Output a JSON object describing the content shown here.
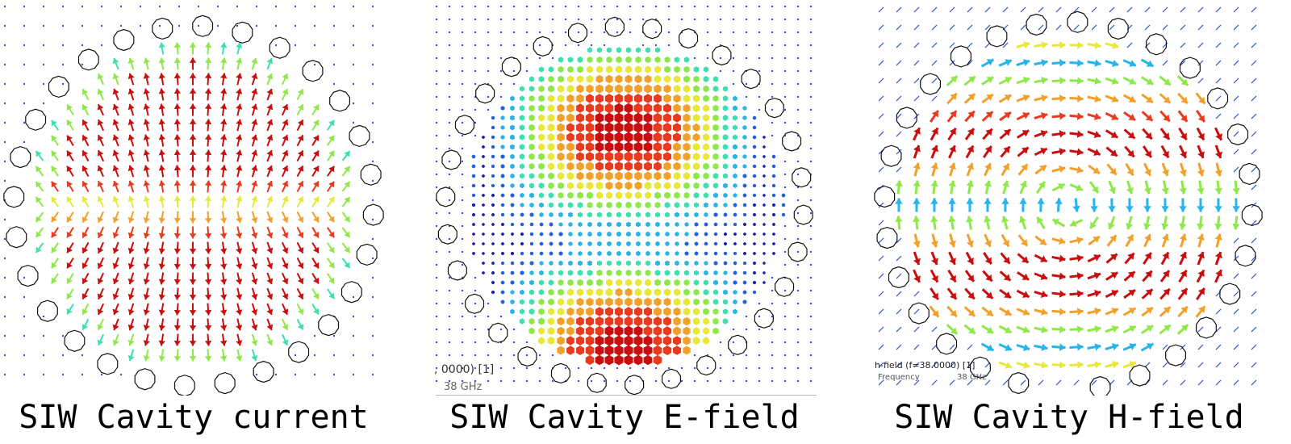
{
  "panels": [
    {
      "id": "current",
      "caption": "SIW Cavity current",
      "field": "current"
    },
    {
      "id": "efield",
      "caption": "SIW Cavity E-field",
      "field": "efield"
    },
    {
      "id": "hfield",
      "caption": "SIW Cavity H-field",
      "field": "hfield"
    }
  ],
  "efield_overlay": {
    "readout": ", 0000)  [1]",
    "freq": "38 GHz"
  },
  "hfield_overlay": {
    "readout": "h-field (f=38.0000) [1]",
    "freq_label": "Frequency",
    "freq_value": "38 GHz"
  },
  "colors": {
    "colormap": [
      "#1a1aa8",
      "#1f5fe0",
      "#27b4e8",
      "#3fe0b0",
      "#8ee84a",
      "#e8e83a",
      "#f2a02a",
      "#e83a1e",
      "#c80e0e"
    ],
    "via_stroke": "#111111",
    "grid_dot": "#1f3fb4"
  },
  "icons": {
    "via": "via-circle",
    "vector": "arrow-glyph"
  }
}
